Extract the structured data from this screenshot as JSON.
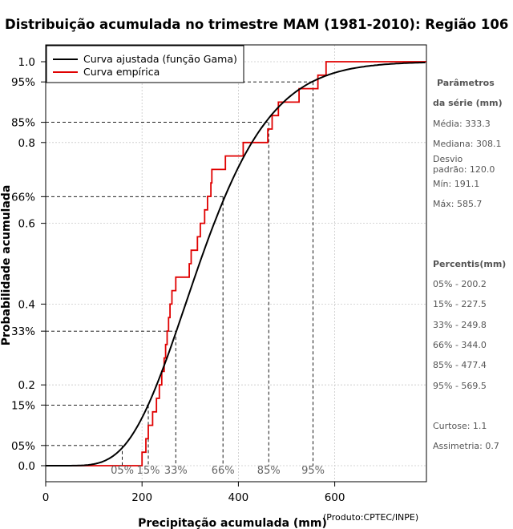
{
  "chart_data": {
    "type": "line",
    "title": "Distribuição acumulada no trimestre MAM (1981-2010): Região 106",
    "xlabel": "Precipitação acumulada (mm)",
    "ylabel": "Probabilidade acumulada",
    "credit": "(Produto:CPTEC/INPE)",
    "xlim": [
      0,
      790
    ],
    "ylim": [
      -0.03,
      1.05
    ],
    "x_ticks": [
      "0",
      "200",
      "400",
      "600"
    ],
    "x_tick_values": [
      0,
      200,
      400,
      600
    ],
    "y_ticks": [
      "0.0",
      "0.2",
      "0.4",
      "0.6",
      "0.8",
      "1.0"
    ],
    "y_tick_values": [
      0,
      0.2,
      0.4,
      0.6,
      0.8,
      1.0
    ],
    "grid": true,
    "legend": {
      "position": "top-left",
      "entries": [
        {
          "label": "Curva ajustada (função Gama)",
          "color": "#000000"
        },
        {
          "label": "Curva empírica",
          "color": "#e00000"
        }
      ]
    },
    "gamma_fit": {
      "shape": 7.7,
      "scale": 43.3
    },
    "series": [
      {
        "name": "Curva empírica",
        "type": "step",
        "color": "#e00000",
        "x": [
          0,
          191,
          200,
          208,
          213,
          222,
          230,
          236,
          241,
          246,
          249,
          252,
          255,
          258,
          262,
          270,
          298,
          302,
          315,
          321,
          330,
          336,
          343,
          345,
          373,
          410,
          461,
          470,
          483,
          526,
          565,
          575,
          582,
          586,
          790
        ],
        "y": [
          0,
          0,
          0.0333,
          0.0667,
          0.1,
          0.1333,
          0.1667,
          0.2,
          0.2333,
          0.2667,
          0.3,
          0.3333,
          0.3667,
          0.4,
          0.4333,
          0.4667,
          0.5,
          0.5333,
          0.5667,
          0.6,
          0.6333,
          0.6667,
          0.7,
          0.7333,
          0.7667,
          0.8,
          0.8333,
          0.8667,
          0.9,
          0.9333,
          0.9667,
          0.9667,
          1.0,
          1.0,
          1.0
        ]
      }
    ],
    "percentile_marks": [
      {
        "label": "05%",
        "p": 0.05,
        "x_fit": 159
      },
      {
        "label": "15%",
        "p": 0.15,
        "x_fit": 213
      },
      {
        "label": "33%",
        "p": 0.333,
        "x_fit": 270
      },
      {
        "label": "66%",
        "p": 0.666,
        "x_fit": 368
      },
      {
        "label": "85%",
        "p": 0.85,
        "x_fit": 463
      },
      {
        "label": "95%",
        "p": 0.95,
        "x_fit": 555
      }
    ],
    "y_percent_ticks": [
      "95%",
      "85%",
      "66%",
      "33%",
      "15%",
      "05%"
    ],
    "y_percent_values": [
      0.95,
      0.85,
      0.666,
      0.333,
      0.15,
      0.05
    ]
  },
  "side_panel": {
    "params_title_1": "Parâmetros",
    "params_title_2": "da série (mm)",
    "media": "Média: 333.3",
    "mediana": "Mediana: 308.1",
    "desvio_1": "Desvio",
    "desvio_2": "padrão: 120.0",
    "min": "Mín: 191.1",
    "max": "Máx: 585.7",
    "percentis_title": "Percentis(mm)",
    "percentis": [
      "05% - 200.2",
      "15% - 227.5",
      "33% - 249.8",
      "66% - 344.0",
      "85% - 477.4",
      "95% - 569.5"
    ],
    "curtose": "Curtose: 1.1",
    "assimetria": "Assimetria: 0.7"
  }
}
